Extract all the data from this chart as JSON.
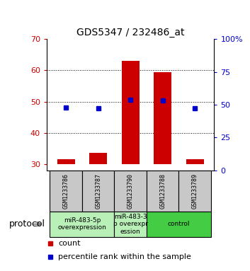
{
  "title": "GDS5347 / 232486_at",
  "samples": [
    "GSM1233786",
    "GSM1233787",
    "GSM1233790",
    "GSM1233788",
    "GSM1233789"
  ],
  "bar_bottoms": [
    30,
    30,
    30,
    30,
    30
  ],
  "bar_tops": [
    31.5,
    33.5,
    63,
    59.5,
    31.5
  ],
  "percentile_ranks": [
    48,
    47,
    53.5,
    53,
    47
  ],
  "ylim_left": [
    28,
    70
  ],
  "ylim_right": [
    0,
    100
  ],
  "yticks_left": [
    30,
    40,
    50,
    60,
    70
  ],
  "yticks_right": [
    0,
    25,
    50,
    75,
    100
  ],
  "group_defs": [
    {
      "start": 0,
      "end": 1,
      "label": "miR-483-5p\noverexpression",
      "color": "#b8f0b8"
    },
    {
      "start": 2,
      "end": 2,
      "label": "miR-483-3\np overexpr\nession",
      "color": "#b8f0b8"
    },
    {
      "start": 3,
      "end": 4,
      "label": "control",
      "color": "#44cc44"
    }
  ],
  "bar_color": "#cc0000",
  "dot_color": "#0000cc",
  "protocol_label": "protocol",
  "legend_count_label": "count",
  "legend_percentile_label": "percentile rank within the sample",
  "grid_yticks": [
    40,
    50,
    60
  ],
  "label_bg": "#c8c8c8",
  "title_fontsize": 10,
  "tick_fontsize": 8,
  "sample_fontsize": 6,
  "group_fontsize": 6.5,
  "legend_fontsize": 8
}
